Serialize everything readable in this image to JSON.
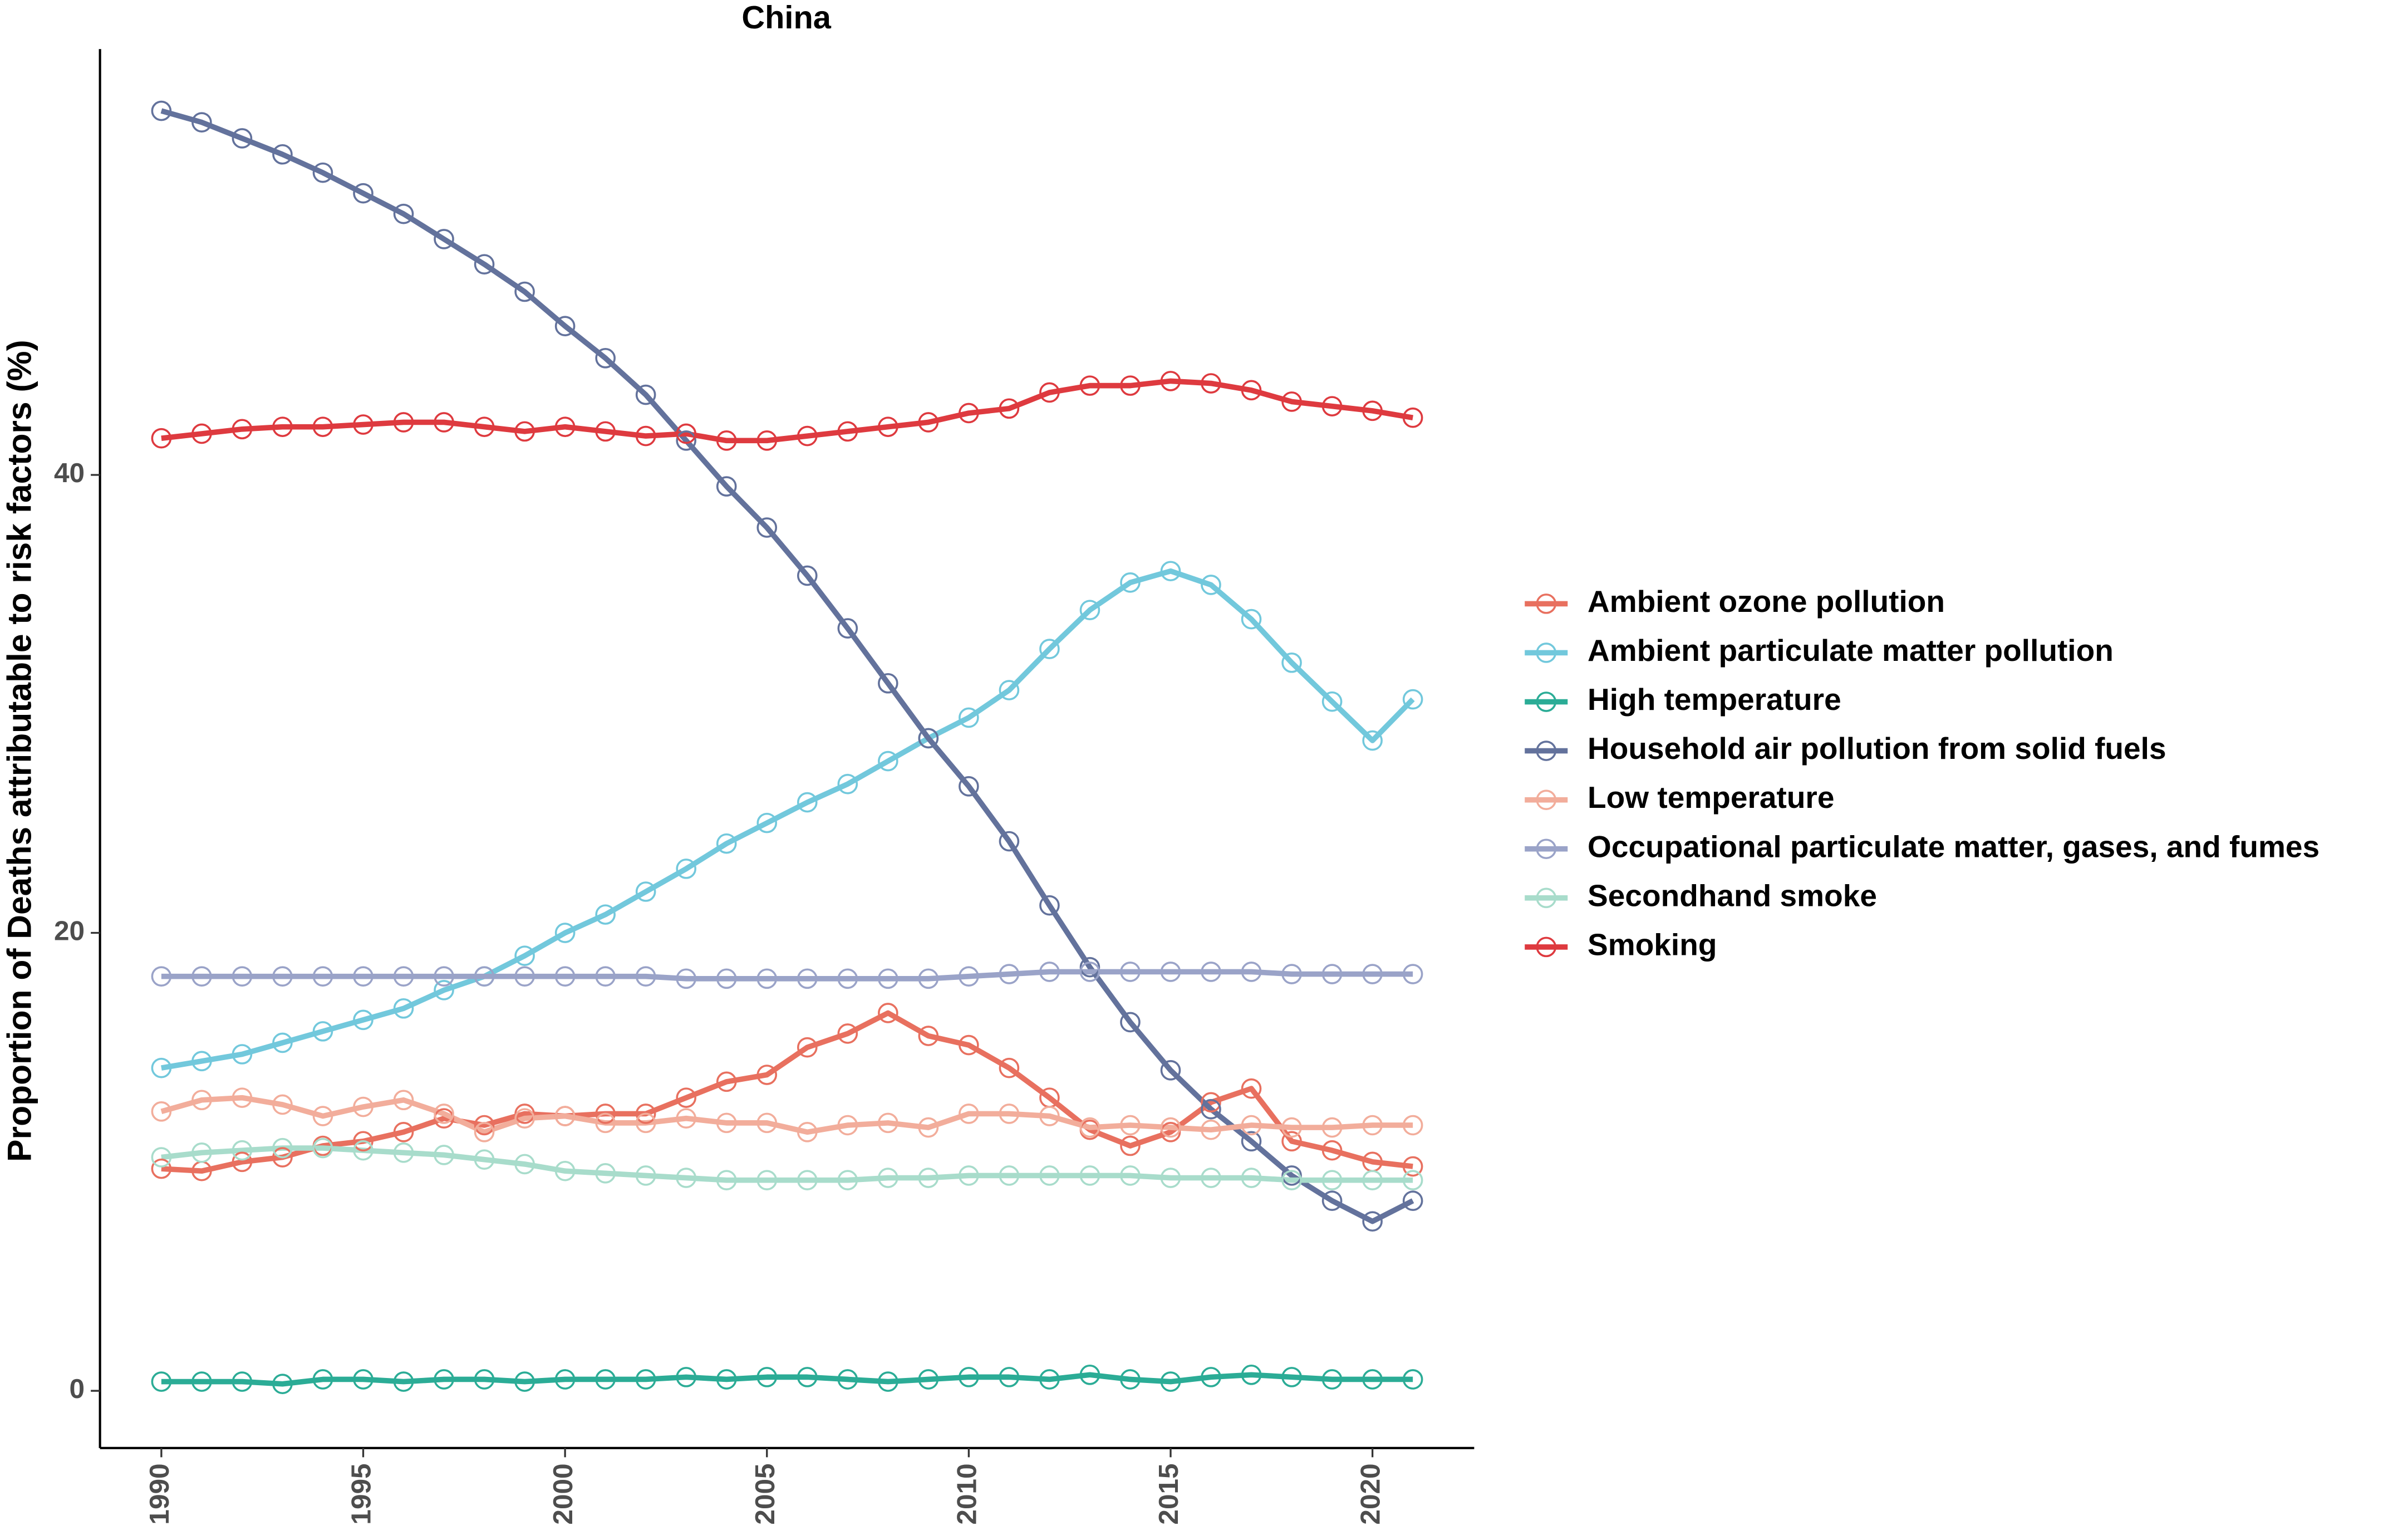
{
  "chart_data": {
    "type": "line",
    "title": "China",
    "y_label": "Proportion of Deaths attributable to risk factors (%)",
    "x": [
      1990,
      1991,
      1992,
      1993,
      1994,
      1995,
      1996,
      1997,
      1998,
      1999,
      2000,
      2001,
      2002,
      2003,
      2004,
      2005,
      2006,
      2007,
      2008,
      2009,
      2010,
      2011,
      2012,
      2013,
      2014,
      2015,
      2016,
      2017,
      2018,
      2019,
      2020,
      2021
    ],
    "xlim": [
      1988.48,
      2022.52
    ],
    "xticks": [
      1990,
      1995,
      2000,
      2005,
      2010,
      2015,
      2020
    ],
    "ylim": [
      -2.5,
      58.6
    ],
    "yticks": [
      0,
      20,
      40
    ],
    "legend": "right",
    "series": [
      {
        "name": "Ambient ozone pollution",
        "color": "#e8705f",
        "values": [
          9.7,
          9.6,
          10.0,
          10.2,
          10.7,
          10.9,
          11.3,
          11.9,
          11.6,
          12.1,
          12.0,
          12.1,
          12.1,
          12.8,
          13.5,
          13.8,
          15.0,
          15.6,
          16.5,
          15.5,
          15.1,
          14.1,
          12.8,
          11.4,
          10.7,
          11.3,
          12.6,
          13.2,
          10.9,
          10.5,
          10.0,
          9.8
        ]
      },
      {
        "name": "Ambient particulate matter pollution",
        "color": "#72c8dc",
        "values": [
          14.1,
          14.4,
          14.7,
          15.2,
          15.7,
          16.2,
          16.7,
          17.5,
          18.1,
          19.0,
          20.0,
          20.8,
          21.8,
          22.8,
          23.9,
          24.8,
          25.7,
          26.5,
          27.5,
          28.5,
          29.4,
          30.6,
          32.4,
          34.1,
          35.3,
          35.8,
          35.2,
          33.7,
          31.8,
          30.1,
          28.4,
          30.2
        ]
      },
      {
        "name": "High temperature",
        "color": "#2bac96",
        "values": [
          0.4,
          0.4,
          0.4,
          0.3,
          0.5,
          0.5,
          0.4,
          0.5,
          0.5,
          0.4,
          0.5,
          0.5,
          0.5,
          0.6,
          0.5,
          0.6,
          0.6,
          0.5,
          0.4,
          0.5,
          0.6,
          0.6,
          0.5,
          0.7,
          0.5,
          0.4,
          0.6,
          0.7,
          0.6,
          0.5,
          0.5,
          0.5
        ]
      },
      {
        "name": "Household air pollution from solid fuels",
        "color": "#63729c",
        "values": [
          55.9,
          55.4,
          54.7,
          54.0,
          53.2,
          52.3,
          51.4,
          50.3,
          49.2,
          48.0,
          46.5,
          45.1,
          43.5,
          41.5,
          39.5,
          37.7,
          35.6,
          33.3,
          30.9,
          28.5,
          26.4,
          24.0,
          21.2,
          18.5,
          16.1,
          14.0,
          12.3,
          10.9,
          9.4,
          8.3,
          7.4,
          8.3
        ]
      },
      {
        "name": "Low temperature",
        "color": "#f2ad9b",
        "values": [
          12.2,
          12.7,
          12.8,
          12.5,
          12.0,
          12.4,
          12.7,
          12.1,
          11.3,
          11.9,
          12.0,
          11.7,
          11.7,
          11.9,
          11.7,
          11.7,
          11.3,
          11.6,
          11.7,
          11.5,
          12.1,
          12.1,
          12.0,
          11.5,
          11.6,
          11.5,
          11.4,
          11.6,
          11.5,
          11.5,
          11.6,
          11.6
        ]
      },
      {
        "name": "Occupational particulate matter, gases, and fumes",
        "color": "#9aa3c8",
        "values": [
          18.1,
          18.1,
          18.1,
          18.1,
          18.1,
          18.1,
          18.1,
          18.1,
          18.1,
          18.1,
          18.1,
          18.1,
          18.1,
          18.0,
          18.0,
          18.0,
          18.0,
          18.0,
          18.0,
          18.0,
          18.1,
          18.2,
          18.3,
          18.3,
          18.3,
          18.3,
          18.3,
          18.3,
          18.2,
          18.2,
          18.2,
          18.2
        ]
      },
      {
        "name": "Secondhand smoke",
        "color": "#a8dccb",
        "values": [
          10.2,
          10.4,
          10.5,
          10.6,
          10.6,
          10.5,
          10.4,
          10.3,
          10.1,
          9.9,
          9.6,
          9.5,
          9.4,
          9.3,
          9.2,
          9.2,
          9.2,
          9.2,
          9.3,
          9.3,
          9.4,
          9.4,
          9.4,
          9.4,
          9.4,
          9.3,
          9.3,
          9.3,
          9.2,
          9.2,
          9.2,
          9.2
        ]
      },
      {
        "name": "Smoking",
        "color": "#de3a3f",
        "values": [
          41.6,
          41.8,
          42.0,
          42.1,
          42.1,
          42.2,
          42.3,
          42.3,
          42.1,
          41.9,
          42.1,
          41.9,
          41.7,
          41.8,
          41.5,
          41.5,
          41.7,
          41.9,
          42.1,
          42.3,
          42.7,
          42.9,
          43.6,
          43.9,
          43.9,
          44.1,
          44.0,
          43.7,
          43.2,
          43.0,
          42.8,
          42.5
        ]
      }
    ]
  }
}
